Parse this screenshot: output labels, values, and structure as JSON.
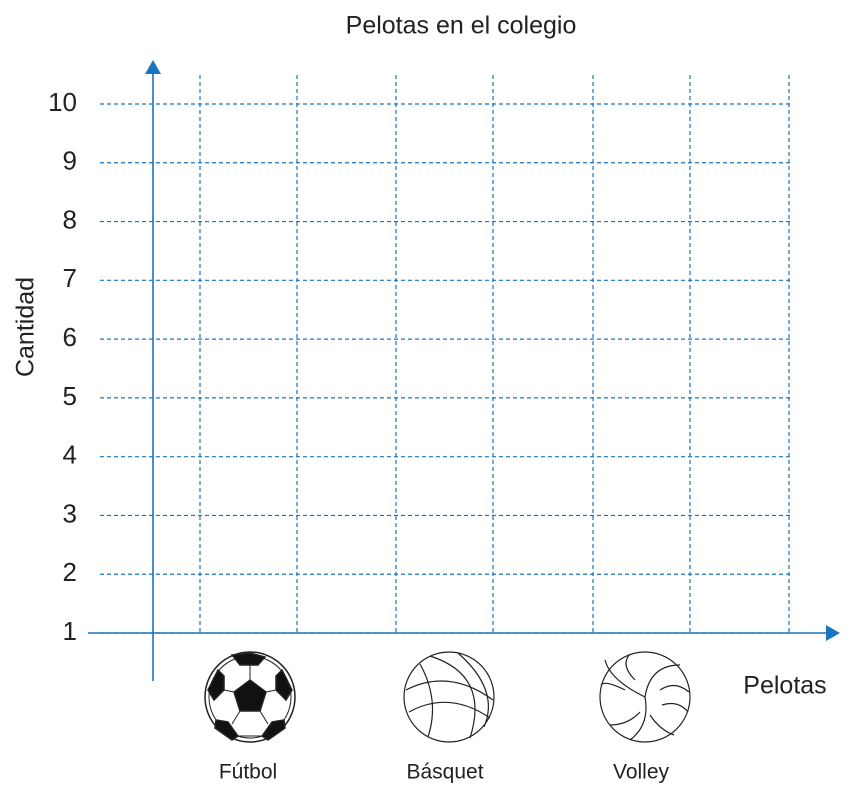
{
  "chart_data": {
    "type": "bar",
    "title": "Pelotas en el colegio",
    "x_label": "Pelotas",
    "y_label": "Cantidad",
    "categories": [
      "Fútbol",
      "Básquet",
      "Volley"
    ],
    "ylim": [
      1,
      10
    ],
    "yticks": [
      1,
      2,
      3,
      4,
      5,
      6,
      7,
      8,
      9,
      10
    ],
    "grid": true,
    "color": "#1b75bc"
  }
}
